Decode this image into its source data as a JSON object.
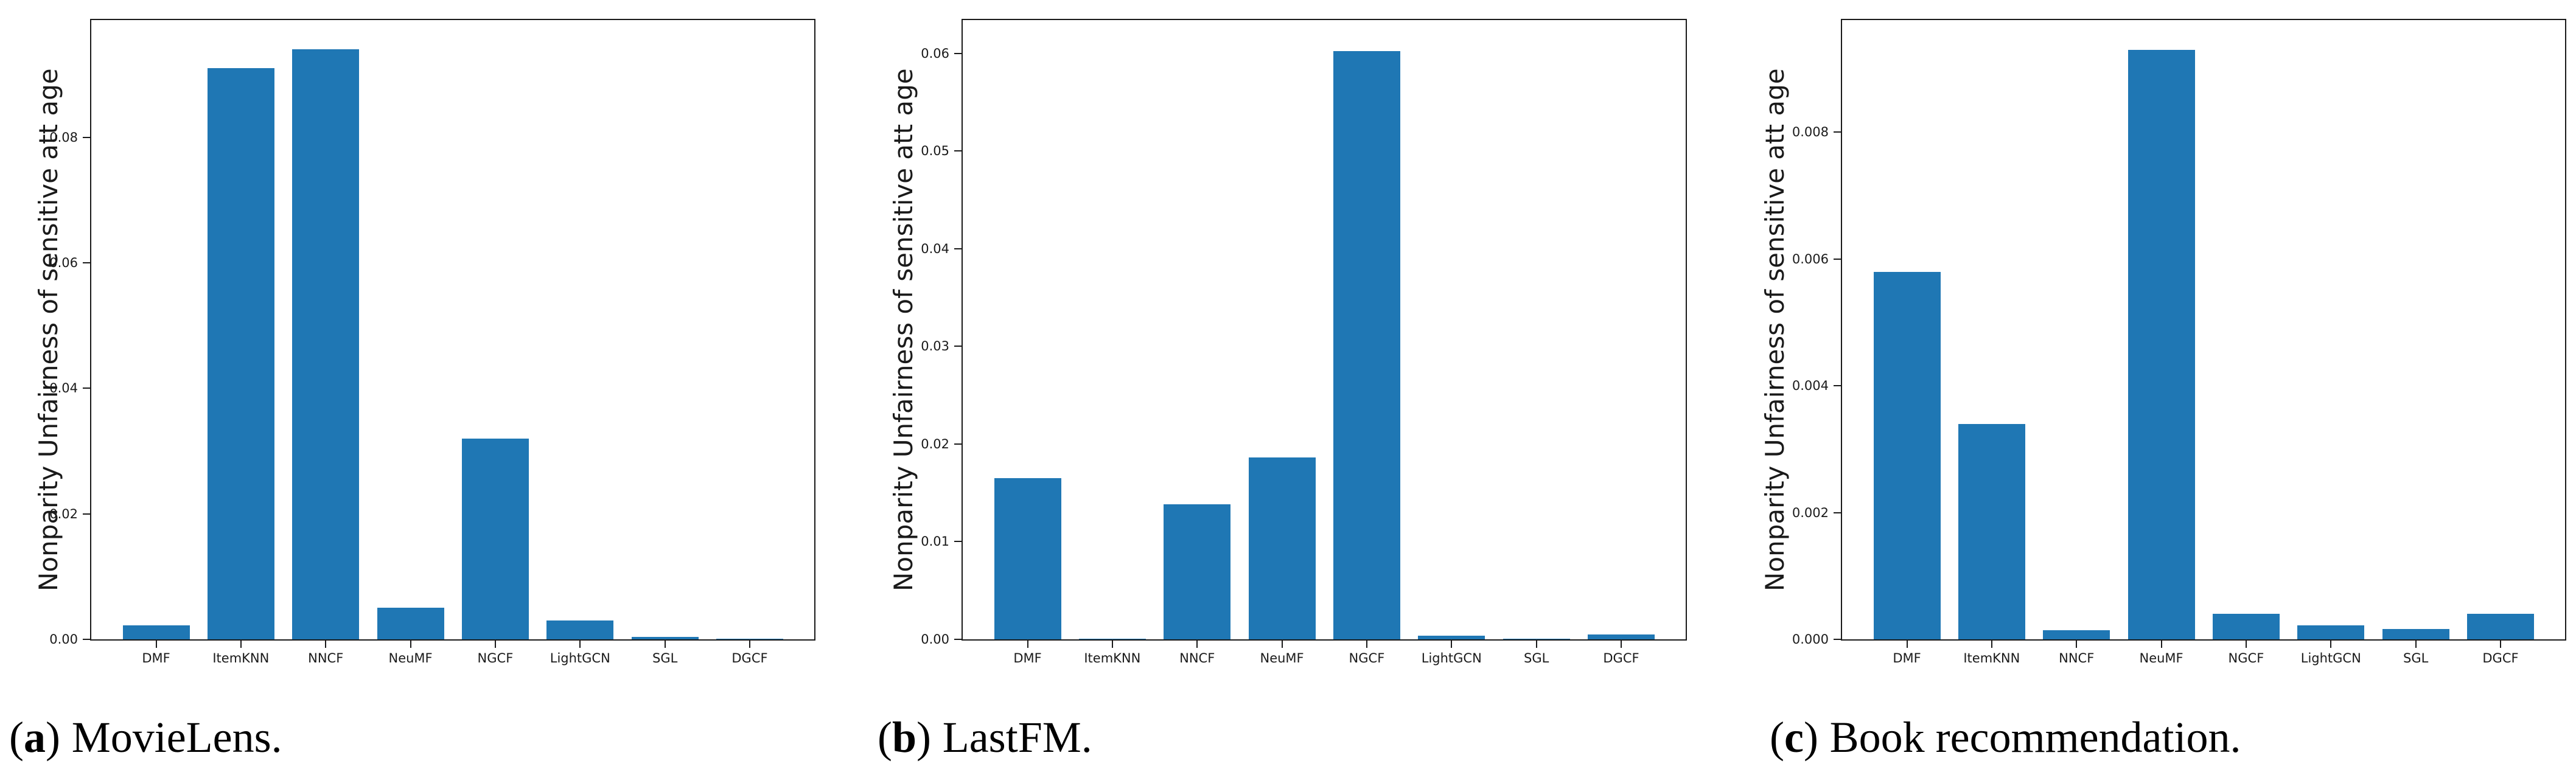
{
  "figure_ylabel": "Nonparity Unfairness of sensitive att age",
  "bar_color": "#1f77b4",
  "axis_color": "#1a1a1a",
  "chart_data": [
    {
      "type": "bar",
      "caption": {
        "open": "(",
        "letter": "a",
        "close": ")",
        "text": "MovieLens."
      },
      "ylabel": "Nonparity Unfairness of sensitive att age",
      "xlabel": "",
      "categories": [
        "DMF",
        "ItemKNN",
        "NNCF",
        "NeuMF",
        "NGCF",
        "LightGCN",
        "SGL",
        "DGCF"
      ],
      "values": [
        0.0022,
        0.091,
        0.094,
        0.005,
        0.032,
        0.003,
        0.0004,
        0.0001
      ],
      "yticks": [
        0.0,
        0.02,
        0.04,
        0.06,
        0.08
      ],
      "ytick_labels": [
        "0.00",
        "0.02",
        "0.04",
        "0.06",
        "0.08"
      ],
      "ylim": [
        0,
        0.0987
      ],
      "grid": false,
      "legend": null,
      "bar_color": "#1f77b4"
    },
    {
      "type": "bar",
      "caption": {
        "open": "(",
        "letter": "b",
        "close": ")",
        "text": "LastFM."
      },
      "ylabel": "Nonparity Unfairness of sensitive att age",
      "xlabel": "",
      "categories": [
        "DMF",
        "ItemKNN",
        "NNCF",
        "NeuMF",
        "NGCF",
        "LightGCN",
        "SGL",
        "DGCF"
      ],
      "values": [
        0.0165,
        5e-05,
        0.0138,
        0.0186,
        0.0602,
        0.0004,
        3e-05,
        0.0005
      ],
      "yticks": [
        0.0,
        0.01,
        0.02,
        0.03,
        0.04,
        0.05,
        0.06
      ],
      "ytick_labels": [
        "0.00",
        "0.01",
        "0.02",
        "0.03",
        "0.04",
        "0.05",
        "0.06"
      ],
      "ylim": [
        0,
        0.0634
      ],
      "grid": false,
      "legend": null,
      "bar_color": "#1f77b4"
    },
    {
      "type": "bar",
      "caption": {
        "open": "(",
        "letter": "c",
        "close": ")",
        "text": "Book recommendation."
      },
      "ylabel": "Nonparity Unfairness of sensitive att age",
      "xlabel": "",
      "categories": [
        "DMF",
        "ItemKNN",
        "NNCF",
        "NeuMF",
        "NGCF",
        "LightGCN",
        "SGL",
        "DGCF"
      ],
      "values": [
        0.0058,
        0.0034,
        0.00014,
        0.0093,
        0.0004,
        0.00022,
        0.00016,
        0.0004
      ],
      "yticks": [
        0.0,
        0.002,
        0.004,
        0.006,
        0.008
      ],
      "ytick_labels": [
        "0.000",
        "0.002",
        "0.004",
        "0.006",
        "0.008"
      ],
      "ylim": [
        0,
        0.00977
      ],
      "grid": false,
      "legend": null,
      "bar_color": "#1f77b4"
    }
  ]
}
